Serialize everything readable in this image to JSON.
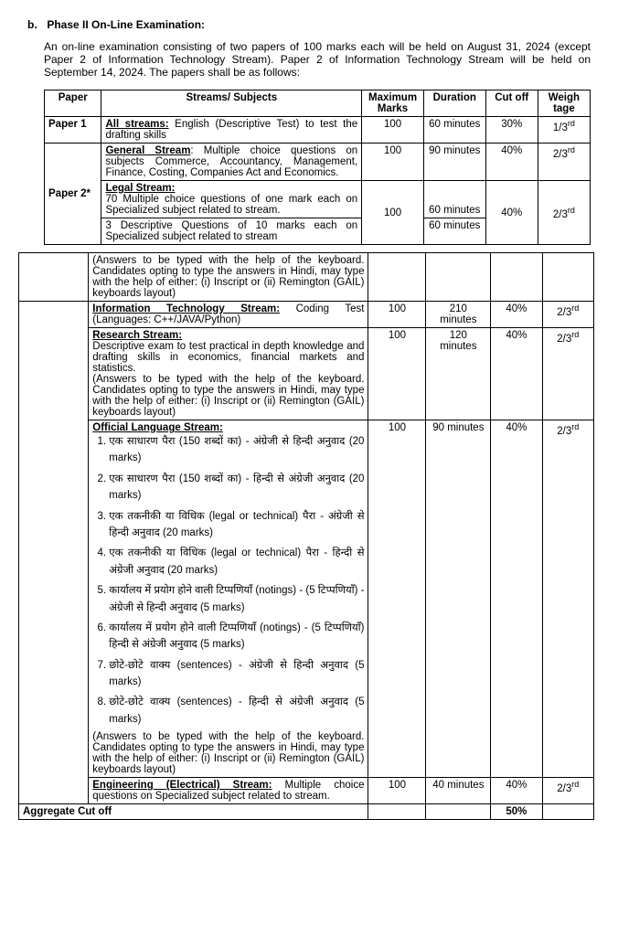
{
  "heading_prefix": "b.",
  "heading_text": "Phase II On-Line Examination:",
  "intro": "An on-line examination consisting of two papers of 100 marks each will be held on August 31, 2024 (except Paper 2 of Information Technology Stream). Paper 2 of Information Technology Stream will be held on September 14, 2024. The papers shall be as follows:",
  "headers": {
    "paper": "Paper",
    "stream": "Streams/ Subjects",
    "marks": "Maximum Marks",
    "duration": "Duration",
    "cutoff": "Cut off",
    "weight": "Weigh tage"
  },
  "paper1": {
    "label": "Paper 1",
    "stream_b": "All streams:",
    "stream_rest": " English (Descriptive Test) to test the drafting skills",
    "marks": "100",
    "duration": "60 minutes",
    "cutoff": "30%",
    "weight_n": "1/3",
    "weight_sup": "rd"
  },
  "paper2": {
    "label": "Paper 2*",
    "general": {
      "title": "General Stream",
      "rest": ": Multiple choice questions on subjects Commerce, Accountancy, Management, Finance, Costing, Companies Act and Economics.",
      "marks": "100",
      "duration": "90 minutes",
      "cutoff": "40%",
      "weight_n": "2/3",
      "weight_sup": "rd"
    },
    "legal": {
      "title": "Legal Stream:",
      "line1": "70 Multiple choice questions of one mark each on Specialized subject related to stream.",
      "line2": "3 Descriptive Questions of 10 marks each on Specialized subject related to stream",
      "marks": "100",
      "dur1": "60 minutes",
      "dur2": "60 minutes",
      "cutoff": "40%",
      "weight_n": "2/3",
      "weight_sup": "rd"
    }
  },
  "table2": {
    "legal_note": "(Answers to be typed with the help of the keyboard. Candidates opting to type the answers in Hindi, may type with the help of either: (i) Inscript or (ii) Remington (GAIL) keyboards layout)",
    "it": {
      "title": "Information Technology Stream:",
      "rest": " Coding Test (Languages: C++/JAVA/Python)",
      "marks": "100",
      "duration": "210 minutes",
      "cutoff": "40%",
      "weight_n": "2/3",
      "weight_sup": "rd"
    },
    "research": {
      "title": "Research Stream:",
      "body": "Descriptive exam to test practical in depth knowledge and drafting skills in economics, financial markets and statistics.",
      "note": "(Answers to be typed with the help of the keyboard. Candidates opting to type the answers in Hindi, may type with the help of either: (i) Inscript or (ii) Remington (GAIL) keyboards layout)",
      "marks": "100",
      "duration": "120 minutes",
      "cutoff": "40%",
      "weight_n": "2/3",
      "weight_sup": "rd"
    },
    "official_lang": {
      "title": "Official Language Stream:",
      "items": [
        "एक साधारण पैरा (150 शब्दों का) - अंग्रेजी से हिन्दी अनुवाद (20 marks)",
        "एक साधारण पैरा (150 शब्दों का) - हिन्दी से अंग्रेजी अनुवाद (20 marks)",
        "एक तकनीकी या विधिक (legal or technical) पैरा  - अंग्रेजी से हिन्दी अनुवाद (20 marks)",
        "एक तकनीकी या विधिक (legal or technical) पैरा - हिन्दी से अंग्रेजी अनुवाद (20 marks)",
        "कार्यालय में प्रयोग होने वाली टिप्पणियाँ (notings) - (5 टिप्पणियाँ) - अंग्रेजी से हिन्दी अनुवाद (5 marks)",
        "कार्यालय में प्रयोग होने वाली टिप्पणियाँ (notings) - (5 टिप्पणियाँ) हिन्दी से अंग्रेजी अनुवाद (5 marks)",
        "छोटे-छोटे वाक्य (sentences) - अंग्रेजी से हिन्दी अनुवाद (5 marks)",
        "छोटे-छोटे वाक्य (sentences) - हिन्दी से अंग्रेजी अनुवाद (5 marks)"
      ],
      "note": "(Answers to be typed with the help of the keyboard. Candidates opting to type the answers in Hindi, may type with the help of either: (i) Inscript or (ii) Remington (GAIL) keyboards layout)",
      "marks": "100",
      "duration": "90 minutes",
      "cutoff": "40%",
      "weight_n": "2/3",
      "weight_sup": "rd"
    },
    "engg": {
      "title": "Engineering (Electrical) Stream:",
      "rest": " Multiple choice questions on Specialized subject related to stream.",
      "marks": "100",
      "duration": "40 minutes",
      "cutoff": "40%",
      "weight_n": "2/3",
      "weight_sup": "rd"
    },
    "aggregate_label": "Aggregate Cut off",
    "aggregate_value": "50%"
  }
}
